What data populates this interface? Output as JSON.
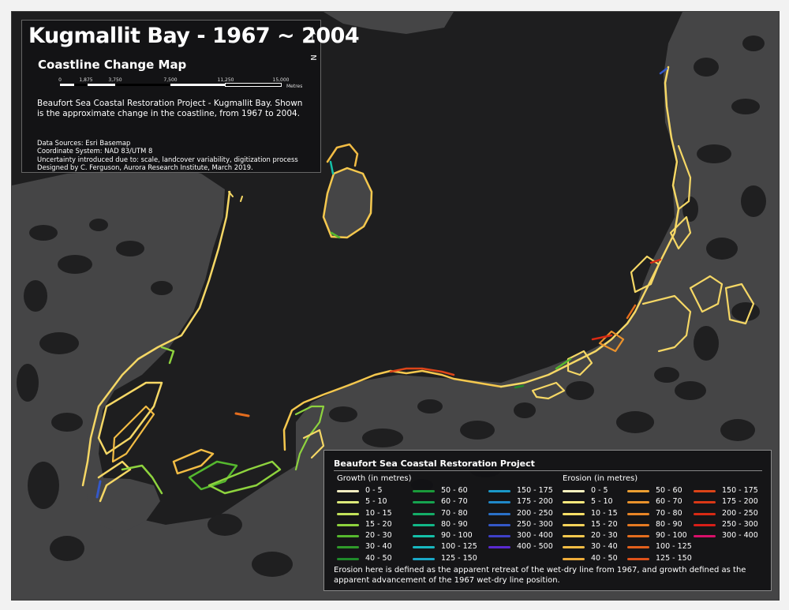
{
  "title": "Kugmallit Bay - 1967 ~ 2004",
  "subtitle": "Coastline Change Map",
  "north_arrow": "N",
  "scale_bar": {
    "labels": [
      "0",
      "1,875",
      "3,750",
      "7,500",
      "11,250",
      "15,000"
    ],
    "unit": "Metres"
  },
  "description": "Beaufort Sea Coastal Restoration Project - Kugmallit Bay. Shown is the approximate change in the coastline, from 1967 to 2004.",
  "metadata": [
    "Data Sources: Esri Basemap",
    "Coordinate System: NAD 83/UTM 8",
    "Uncertainty introduced due to: scale, landcover variability, digitization process",
    "Designed by C. Ferguson, Aurora Research Institute, March 2019."
  ],
  "legend": {
    "title": "Beaufort Sea Coastal Restoration Project",
    "growth_heading": "Growth (in metres)",
    "erosion_heading": "Erosion (in metres)",
    "growth_col1": [
      {
        "label": "0 - 5",
        "color": "#f4eec2"
      },
      {
        "label": "5 - 10",
        "color": "#dcea7a"
      },
      {
        "label": "10 - 15",
        "color": "#c2e25a"
      },
      {
        "label": "15 - 20",
        "color": "#8ed33e"
      },
      {
        "label": "20 - 30",
        "color": "#55b82e"
      },
      {
        "label": "30 - 40",
        "color": "#2f9a2a"
      },
      {
        "label": "40 - 50",
        "color": "#1f8a2a"
      }
    ],
    "growth_col2": [
      {
        "label": "50 - 60",
        "color": "#1a9a3a"
      },
      {
        "label": "60 - 70",
        "color": "#16a350"
      },
      {
        "label": "70 - 80",
        "color": "#14ad68"
      },
      {
        "label": "80 - 90",
        "color": "#12b888"
      },
      {
        "label": "90 - 100",
        "color": "#14c0a8"
      },
      {
        "label": "100 - 125",
        "color": "#18b8c0"
      },
      {
        "label": "125 - 150",
        "color": "#1aa8c8"
      }
    ],
    "growth_col3": [
      {
        "label": "150 - 175",
        "color": "#1a98c8"
      },
      {
        "label": "175 - 200",
        "color": "#2088c8"
      },
      {
        "label": "200 - 250",
        "color": "#2a70c8"
      },
      {
        "label": "250 - 300",
        "color": "#3458c8"
      },
      {
        "label": "300 - 400",
        "color": "#3e40c8"
      },
      {
        "label": "400 - 500",
        "color": "#5a2ad0"
      }
    ],
    "erosion_col1": [
      {
        "label": "0 - 5",
        "color": "#fbf3c0"
      },
      {
        "label": "5 - 10",
        "color": "#fbe87c"
      },
      {
        "label": "10 - 15",
        "color": "#fadf66"
      },
      {
        "label": "15 - 20",
        "color": "#f7d35a"
      },
      {
        "label": "20 - 30",
        "color": "#f5c84e"
      },
      {
        "label": "30 - 40",
        "color": "#f2bc44"
      },
      {
        "label": "40 - 50",
        "color": "#efad3a"
      }
    ],
    "erosion_col2": [
      {
        "label": "50 - 60",
        "color": "#ec9f32"
      },
      {
        "label": "60 - 70",
        "color": "#ea922c"
      },
      {
        "label": "70 - 80",
        "color": "#e88526"
      },
      {
        "label": "80 - 90",
        "color": "#e67a22"
      },
      {
        "label": "90 - 100",
        "color": "#e46d1e"
      },
      {
        "label": "100 - 125",
        "color": "#e2601c"
      },
      {
        "label": "125 - 150",
        "color": "#df521a"
      }
    ],
    "erosion_col3": [
      {
        "label": "150 - 175",
        "color": "#dc4418"
      },
      {
        "label": "175 - 200",
        "color": "#da3816"
      },
      {
        "label": "200 - 250",
        "color": "#d82a14"
      },
      {
        "label": "250 - 300",
        "color": "#d81e18"
      },
      {
        "label": "300 - 400",
        "color": "#d8106a"
      }
    ],
    "note": "Erosion here is defined as the apparent retreat of the wet-dry line from 1967, and growth defined as the apparent advancement of the 1967 wet-dry line position."
  },
  "colors": {
    "sea": "#1e1e1f",
    "land": "#454546",
    "lake": "#1f1f20",
    "panel_bg": "#121214"
  }
}
